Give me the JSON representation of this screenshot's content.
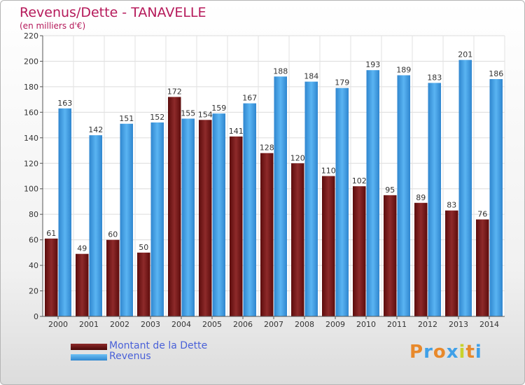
{
  "title": "Revenus/Dette - TANAVELLE",
  "subtitle": "(en milliers d'€)",
  "logo": "Proxiti",
  "chart_data": {
    "type": "bar",
    "title": "Revenus/Dette - TANAVELLE",
    "subtitle": "(en milliers d'€)",
    "categories": [
      "2000",
      "2001",
      "2002",
      "2003",
      "2004",
      "2005",
      "2006",
      "2007",
      "2008",
      "2009",
      "2010",
      "2011",
      "2012",
      "2013",
      "2014"
    ],
    "series": [
      {
        "name": "Montant de la Dette",
        "values": [
          61,
          49,
          60,
          50,
          172,
          154,
          141,
          128,
          120,
          110,
          102,
          95,
          89,
          83,
          76
        ],
        "color": "#7a1a1a"
      },
      {
        "name": "Revenus",
        "values": [
          163,
          142,
          151,
          152,
          155,
          159,
          167,
          188,
          184,
          179,
          193,
          189,
          183,
          201,
          186
        ],
        "color": "#3fa0e8"
      }
    ],
    "ylim": [
      0,
      220
    ],
    "yticks": [
      0,
      20,
      40,
      60,
      80,
      100,
      120,
      140,
      160,
      180,
      200,
      220
    ],
    "grid": true,
    "legend": "bottom-left"
  }
}
